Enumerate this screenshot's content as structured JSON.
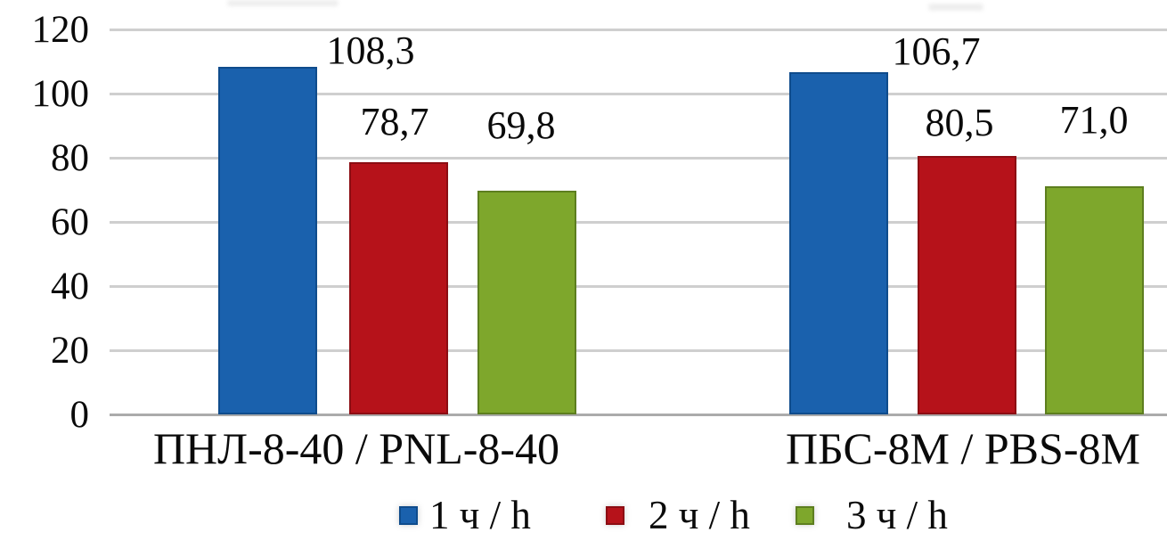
{
  "chart_data": {
    "type": "bar",
    "title": "",
    "categories": [
      "ПНЛ-8-40 / PNL-8-40",
      "ПБС-8М / PBS-8M"
    ],
    "series": [
      {
        "name": "1 ч / h",
        "color": "#1a61ad",
        "border_color": "#0f4c8c",
        "values": [
          108.3,
          106.7
        ],
        "value_labels": [
          "108,3",
          "106,7"
        ]
      },
      {
        "name": "2 ч / h",
        "color": "#b6121a",
        "border_color": "#8c0d13",
        "values": [
          78.7,
          80.5
        ],
        "value_labels": [
          "78,7",
          "80,5"
        ]
      },
      {
        "name": "3 ч / h",
        "color": "#7ea72c",
        "border_color": "#5d7e1f",
        "values": [
          69.8,
          71.0
        ],
        "value_labels": [
          "69,8",
          "71,0"
        ]
      }
    ],
    "y_axis": {
      "min": 0,
      "max": 120,
      "step": 20,
      "tick_labels": [
        "120",
        "100",
        "80",
        "60",
        "40",
        "20",
        "0"
      ]
    },
    "grid": true,
    "legend_position": "bottom",
    "decimal_separator": ",",
    "gridline_color": "#cfcfcf",
    "baseline_color": "#ababab",
    "text_color": "#0a0a0a"
  }
}
